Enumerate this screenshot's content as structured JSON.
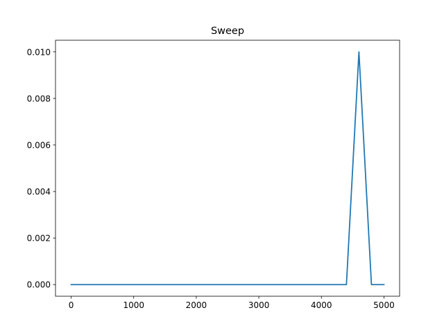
{
  "chart_data": {
    "type": "line",
    "title": "Sweep",
    "xlabel": "",
    "ylabel": "",
    "xlim": [
      -250,
      5250
    ],
    "ylim": [
      -0.0005,
      0.0105
    ],
    "xticks": [
      0,
      1000,
      2000,
      3000,
      4000,
      5000
    ],
    "xtick_labels": [
      "0",
      "1000",
      "2000",
      "3000",
      "4000",
      "5000"
    ],
    "yticks": [
      0.0,
      0.002,
      0.004,
      0.006,
      0.008,
      0.01
    ],
    "ytick_labels": [
      "0.000",
      "0.002",
      "0.004",
      "0.006",
      "0.008",
      "0.010"
    ],
    "grid": false,
    "series": [
      {
        "color": "#1f77b4",
        "x": [
          0,
          4400,
          4600,
          4800,
          5000
        ],
        "y": [
          0,
          0,
          0.01,
          0,
          0
        ]
      }
    ]
  }
}
